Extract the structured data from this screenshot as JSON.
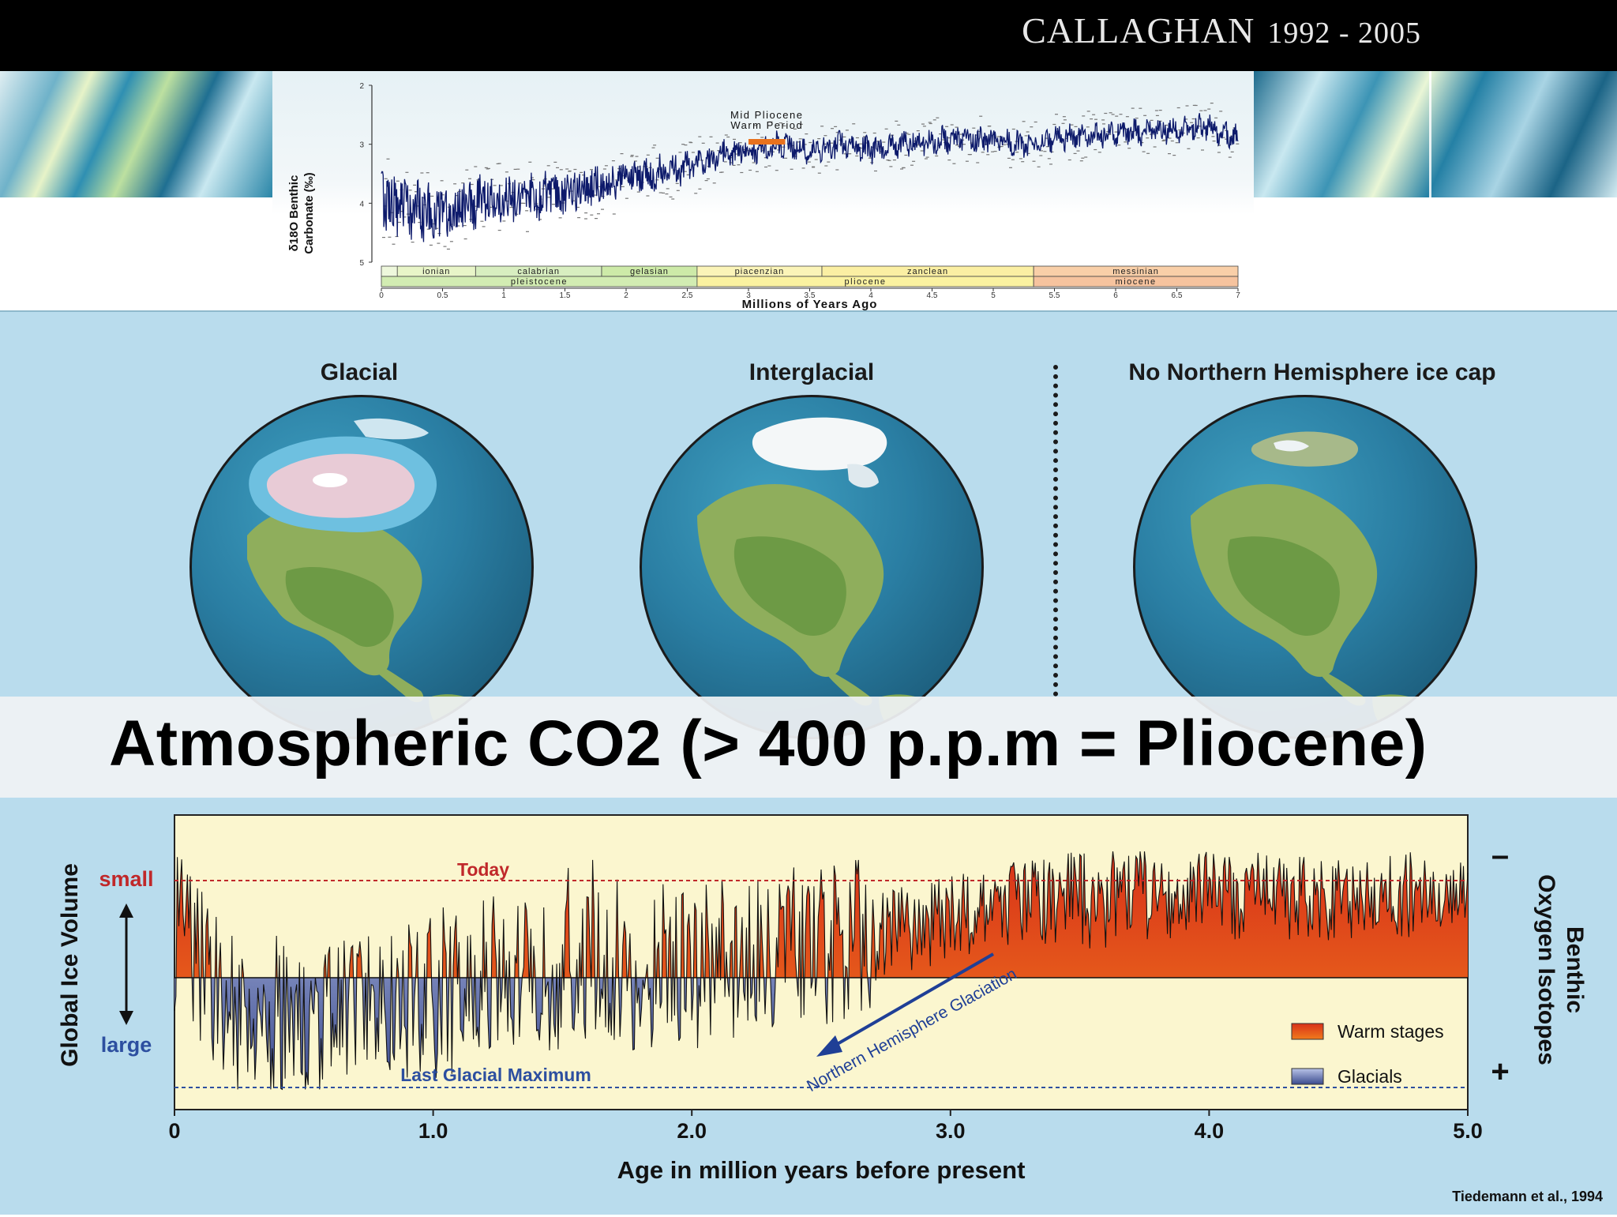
{
  "header": {
    "title": "CALLAGHAN",
    "years": "1992 - 2005"
  },
  "globes": [
    {
      "label": "Glacial",
      "ice": "large"
    },
    {
      "label": "Interglacial",
      "ice": "small"
    },
    {
      "label": "No Northern Hemisphere ice cap",
      "ice": "none"
    }
  ],
  "banner": {
    "text": "Atmospheric CO2 (> 400 p.p.m = Pliocene)"
  },
  "credit": "Tiedemann et al., 1994",
  "colors": {
    "warm": "#e8431c",
    "glacial": "#3a4a8e",
    "today_line": "#c0282a",
    "lgm_line": "#2d4fa0",
    "chart_bg": "#fbf6cf",
    "series_line": "#0d1a6b"
  },
  "chart_data": [
    {
      "type": "line",
      "title": "",
      "annotation": "Mid Pliocene Warm Period",
      "annotation_range": [
        3.0,
        3.3
      ],
      "ylabel_lines": [
        "δ18O Benthic",
        "Carbonate (‰)"
      ],
      "xlabel": "Millions of Years Ago",
      "xlim": [
        0,
        7
      ],
      "ylim": [
        5,
        2
      ],
      "x_ticks": [
        "0",
        "0.5",
        "1",
        "1.5",
        "2",
        "2.5",
        "3",
        "3.5",
        "4",
        "4.5",
        "5",
        "5.5",
        "6",
        "6.5",
        "7"
      ],
      "y_ticks": [
        "2",
        "3",
        "4",
        "5"
      ],
      "stages": [
        {
          "name": "ionian",
          "start": 0.13,
          "end": 0.77,
          "color": "#e8f5c8"
        },
        {
          "name": "calabrian",
          "start": 0.77,
          "end": 1.8,
          "color": "#d8eec0"
        },
        {
          "name": "gelasian",
          "start": 1.8,
          "end": 2.58,
          "color": "#cdeaa8"
        },
        {
          "name": "piacenzian",
          "start": 2.58,
          "end": 3.6,
          "color": "#fbf4b8"
        },
        {
          "name": "zanclean",
          "start": 3.6,
          "end": 5.33,
          "color": "#fbefa3"
        },
        {
          "name": "messinian",
          "start": 5.33,
          "end": 7.0,
          "color": "#f9cfa8"
        }
      ],
      "epochs": [
        {
          "name": "pleistocene",
          "start": 0.0,
          "end": 2.58,
          "color": "#d2ecb2"
        },
        {
          "name": "pliocene",
          "start": 2.58,
          "end": 5.33,
          "color": "#fbf2a0"
        },
        {
          "name": "miocene",
          "start": 5.33,
          "end": 7.0,
          "color": "#f6c39e"
        }
      ],
      "series": [
        {
          "x": [
            0,
            0.25,
            0.5,
            0.75,
            1,
            1.25,
            1.5,
            1.75,
            2,
            2.25,
            2.5,
            2.75,
            3,
            3.25,
            3.5,
            3.75,
            4,
            4.25,
            4.5,
            4.75,
            5,
            5.25,
            5.5,
            5.75,
            6,
            6.25,
            6.5,
            6.75,
            7
          ],
          "y": [
            3.9,
            4.1,
            4.2,
            4.0,
            3.9,
            3.9,
            3.8,
            3.7,
            3.6,
            3.5,
            3.4,
            3.2,
            3.1,
            3.0,
            3.1,
            3.0,
            3.1,
            3.0,
            2.95,
            2.9,
            2.95,
            3.0,
            2.9,
            2.85,
            2.8,
            2.8,
            2.75,
            2.7,
            2.9
          ]
        }
      ]
    },
    {
      "type": "area",
      "title": "",
      "xlabel": "Age in million years before present",
      "ylabel": "Global Ice Volume",
      "ylabel_top": "small",
      "ylabel_bottom": "large",
      "right_label": "Benthic Oxygen Isotopes",
      "right_top_sign": "–",
      "right_bottom_sign": "+",
      "xlim": [
        0,
        5.0
      ],
      "x_ticks": [
        "0",
        "1.0",
        "2.0",
        "3.0",
        "4.0",
        "5.0"
      ],
      "reference_lines": [
        {
          "name": "Today",
          "level": "small"
        },
        {
          "name": "Last Glacial Maximum",
          "level": "large"
        }
      ],
      "arrow_annotation": "Northern Hemisphere Glaciation",
      "legend": [
        {
          "name": "Warm stages"
        },
        {
          "name": "Glacials"
        }
      ],
      "legend_position": "bottom-right",
      "series": [
        {
          "x": [
            0,
            0.25,
            0.5,
            0.75,
            1,
            1.25,
            1.5,
            1.75,
            2,
            2.25,
            2.5,
            2.75,
            3,
            3.25,
            3.5,
            3.75,
            4,
            4.25,
            4.5,
            4.75,
            5
          ],
          "y": [
            0.5,
            -0.4,
            -0.55,
            -0.3,
            -0.2,
            0.0,
            0.05,
            0.1,
            0.15,
            0.2,
            0.3,
            0.45,
            0.6,
            0.75,
            0.85,
            0.8,
            0.85,
            0.8,
            0.82,
            0.85,
            0.8
          ]
        }
      ]
    }
  ]
}
